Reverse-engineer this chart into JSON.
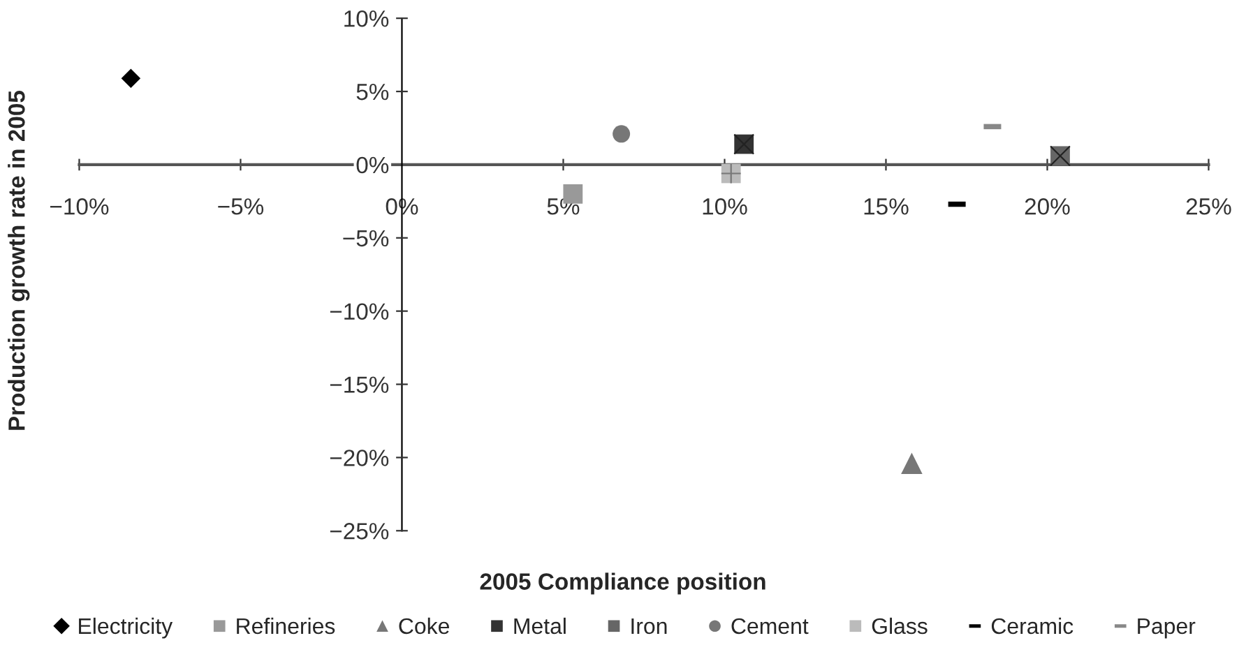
{
  "chart_data": {
    "type": "scatter",
    "xlabel": "2005 Compliance position",
    "ylabel": "Production growth rate in 2005",
    "legend": "bottom",
    "grid": false,
    "xlim": [
      -10,
      25
    ],
    "ylim": [
      -25,
      10
    ],
    "xticks": [
      {
        "value": -10,
        "label": "−10%"
      },
      {
        "value": -5,
        "label": "−5%"
      },
      {
        "value": 0,
        "label": "0%"
      },
      {
        "value": 5,
        "label": "5%"
      },
      {
        "value": 10,
        "label": "10%"
      },
      {
        "value": 15,
        "label": "15%"
      },
      {
        "value": 20,
        "label": "20%"
      },
      {
        "value": 25,
        "label": "25%"
      }
    ],
    "yticks": [
      {
        "value": -25,
        "label": "−25%"
      },
      {
        "value": -20,
        "label": "−20%"
      },
      {
        "value": -15,
        "label": "−15%"
      },
      {
        "value": -10,
        "label": "−10%"
      },
      {
        "value": -5,
        "label": "−5%"
      },
      {
        "value": 0,
        "label": "0%"
      },
      {
        "value": 5,
        "label": "5%"
      },
      {
        "value": 10,
        "label": "10%"
      }
    ],
    "series": [
      {
        "name": "Electricity",
        "color": "#000000",
        "marker": "diamond",
        "x": [
          -8.4
        ],
        "values": [
          5.9
        ]
      },
      {
        "name": "Refineries",
        "color": "#999999",
        "marker": "square",
        "x": [
          5.3
        ],
        "values": [
          -2.0
        ]
      },
      {
        "name": "Coke",
        "color": "#777777",
        "marker": "triangle",
        "x": [
          15.8
        ],
        "values": [
          -20.4
        ]
      },
      {
        "name": "Metal",
        "color": "#333333",
        "marker": "square",
        "x": [
          10.6
        ],
        "values": [
          1.4
        ]
      },
      {
        "name": "Iron",
        "color": "#666666",
        "marker": "square",
        "x": [
          20.4
        ],
        "values": [
          0.6
        ]
      },
      {
        "name": "Cement",
        "color": "#777777",
        "marker": "circle",
        "x": [
          6.8
        ],
        "values": [
          2.1
        ]
      },
      {
        "name": "Glass",
        "color": "#bbbbbb",
        "marker": "square",
        "x": [
          10.2
        ],
        "values": [
          -0.6
        ]
      },
      {
        "name": "Ceramic",
        "color": "#000000",
        "x": [
          17.2
        ],
        "values": [
          -2.7
        ]
      },
      {
        "name": "Paper",
        "color": "#888888",
        "x": [
          18.3
        ],
        "values": [
          2.6
        ]
      }
    ]
  }
}
